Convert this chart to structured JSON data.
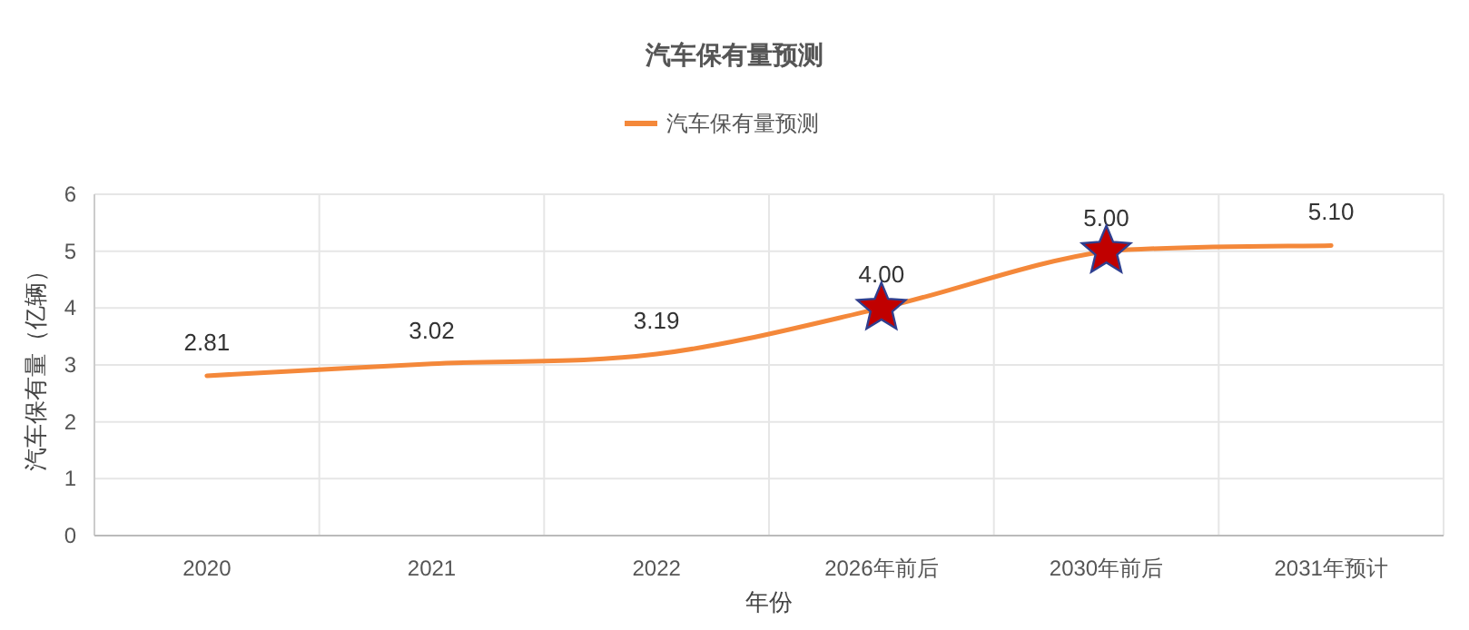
{
  "chart_data": {
    "type": "line",
    "title": "汽车保有量预测",
    "xlabel": "年份",
    "ylabel": "汽车保有量（亿辆）",
    "categories": [
      "2020",
      "2021",
      "2022",
      "2026年前后",
      "2030年前后",
      "2031年预计"
    ],
    "series": [
      {
        "name": "汽车保有量预测",
        "color": "#f4883a",
        "values": [
          2.81,
          3.02,
          3.19,
          4.0,
          5.0,
          5.1
        ],
        "value_labels": [
          "2.81",
          "3.02",
          "3.19",
          "4.00",
          "5.00",
          "5.10"
        ],
        "marker": "none",
        "line_style": "solid"
      },
      {
        "type": "scatter",
        "color": "#c00000",
        "values": [
          null,
          null,
          null,
          4.0,
          5.0,
          null
        ],
        "marker": "star"
      }
    ],
    "ylim": [
      0,
      6
    ],
    "yticks": [
      0,
      1,
      2,
      3,
      4,
      5,
      6
    ],
    "grid": true,
    "legend": "top"
  }
}
